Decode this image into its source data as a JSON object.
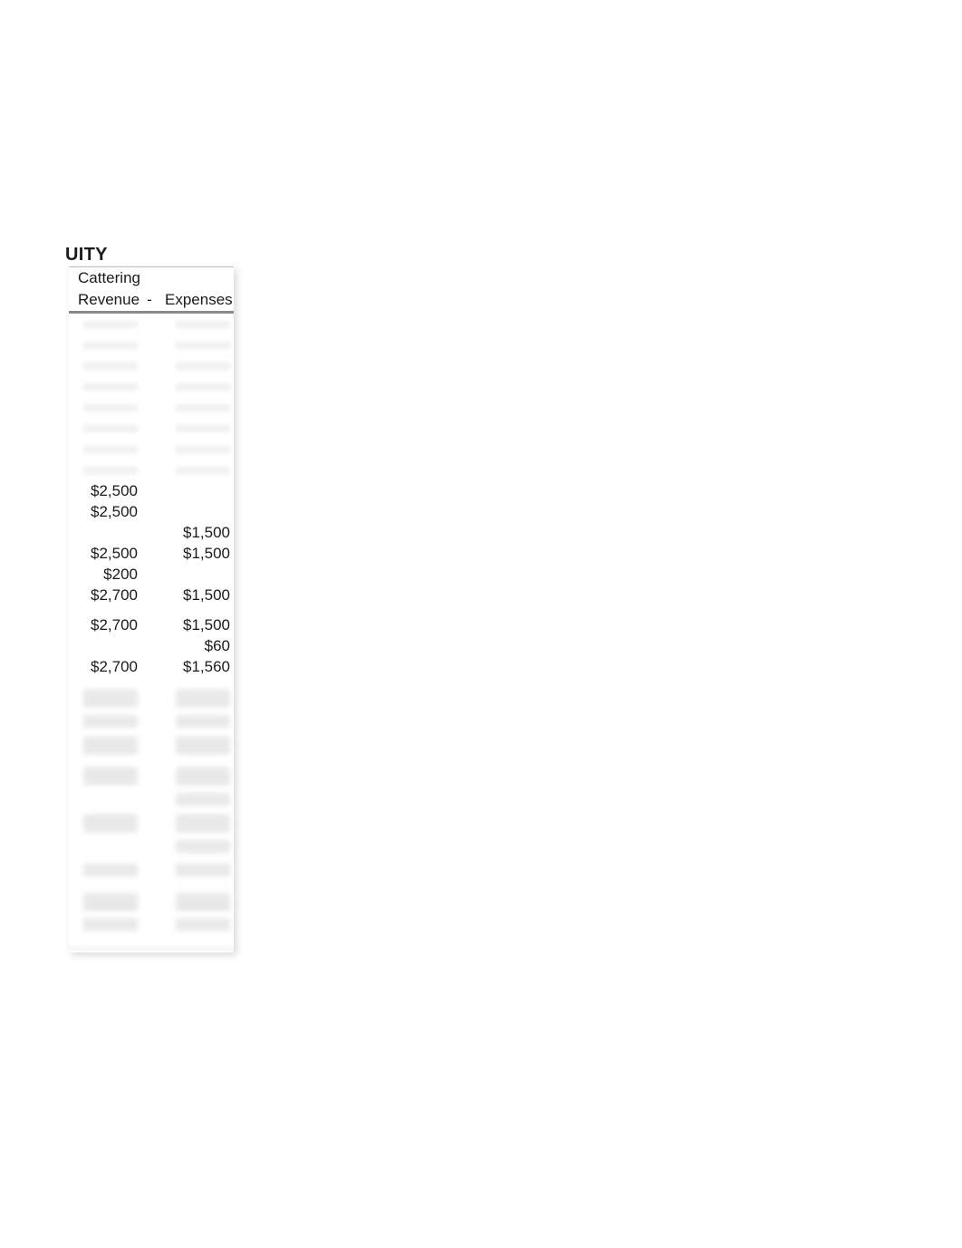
{
  "heading": "UITY",
  "table": {
    "header1": {
      "category": "Cattering"
    },
    "header2": {
      "revenue_label": "Revenue",
      "separator": "-",
      "expenses_label": "Expenses"
    },
    "rows": [
      {
        "type": "blur-light"
      },
      {
        "type": "blur-light"
      },
      {
        "type": "blur-light"
      },
      {
        "type": "blur-light"
      },
      {
        "type": "blur-light"
      },
      {
        "type": "blur-light"
      },
      {
        "type": "blur-light"
      },
      {
        "type": "blur-light"
      },
      {
        "type": "data",
        "revenue": "$2,500",
        "expenses": ""
      },
      {
        "type": "data",
        "revenue": "$2,500",
        "expenses": ""
      },
      {
        "type": "data",
        "revenue": "",
        "expenses": "$1,500"
      },
      {
        "type": "data",
        "revenue": "$2,500",
        "expenses": "$1,500"
      },
      {
        "type": "data",
        "revenue": "$200",
        "expenses": ""
      },
      {
        "type": "data",
        "revenue": "$2,700",
        "expenses": "$1,500"
      },
      {
        "type": "spacer"
      },
      {
        "type": "data",
        "revenue": "$2,700",
        "expenses": "$1,500"
      },
      {
        "type": "data",
        "revenue": "",
        "expenses": "$60"
      },
      {
        "type": "data",
        "revenue": "$2,700",
        "expenses": "$1,560"
      },
      {
        "type": "spacer"
      }
    ],
    "bottom_rows": [
      {
        "type": "blur-strong-underline"
      },
      {
        "type": "blur-strong"
      },
      {
        "type": "blur-strong-underline"
      },
      {
        "type": "spacer-small"
      },
      {
        "type": "blur-strong-underline"
      },
      {
        "type": "blur-strong-right-only"
      },
      {
        "type": "blur-strong-underline"
      },
      {
        "type": "blur-strong-right-only"
      },
      {
        "type": "blur-light"
      },
      {
        "type": "spacer-small"
      },
      {
        "type": "blur-strong-double"
      },
      {
        "type": "blur-light"
      }
    ]
  },
  "colors": {
    "text": "#1a1a1a",
    "background": "#ffffff",
    "blur_light": "#d4d4d4",
    "blur_strong": "#bdbdbd",
    "shadow": "rgba(0,0,0,0.15)",
    "header_rule": "#8a8a8a"
  },
  "font_size_body": 17,
  "font_size_heading": 20
}
